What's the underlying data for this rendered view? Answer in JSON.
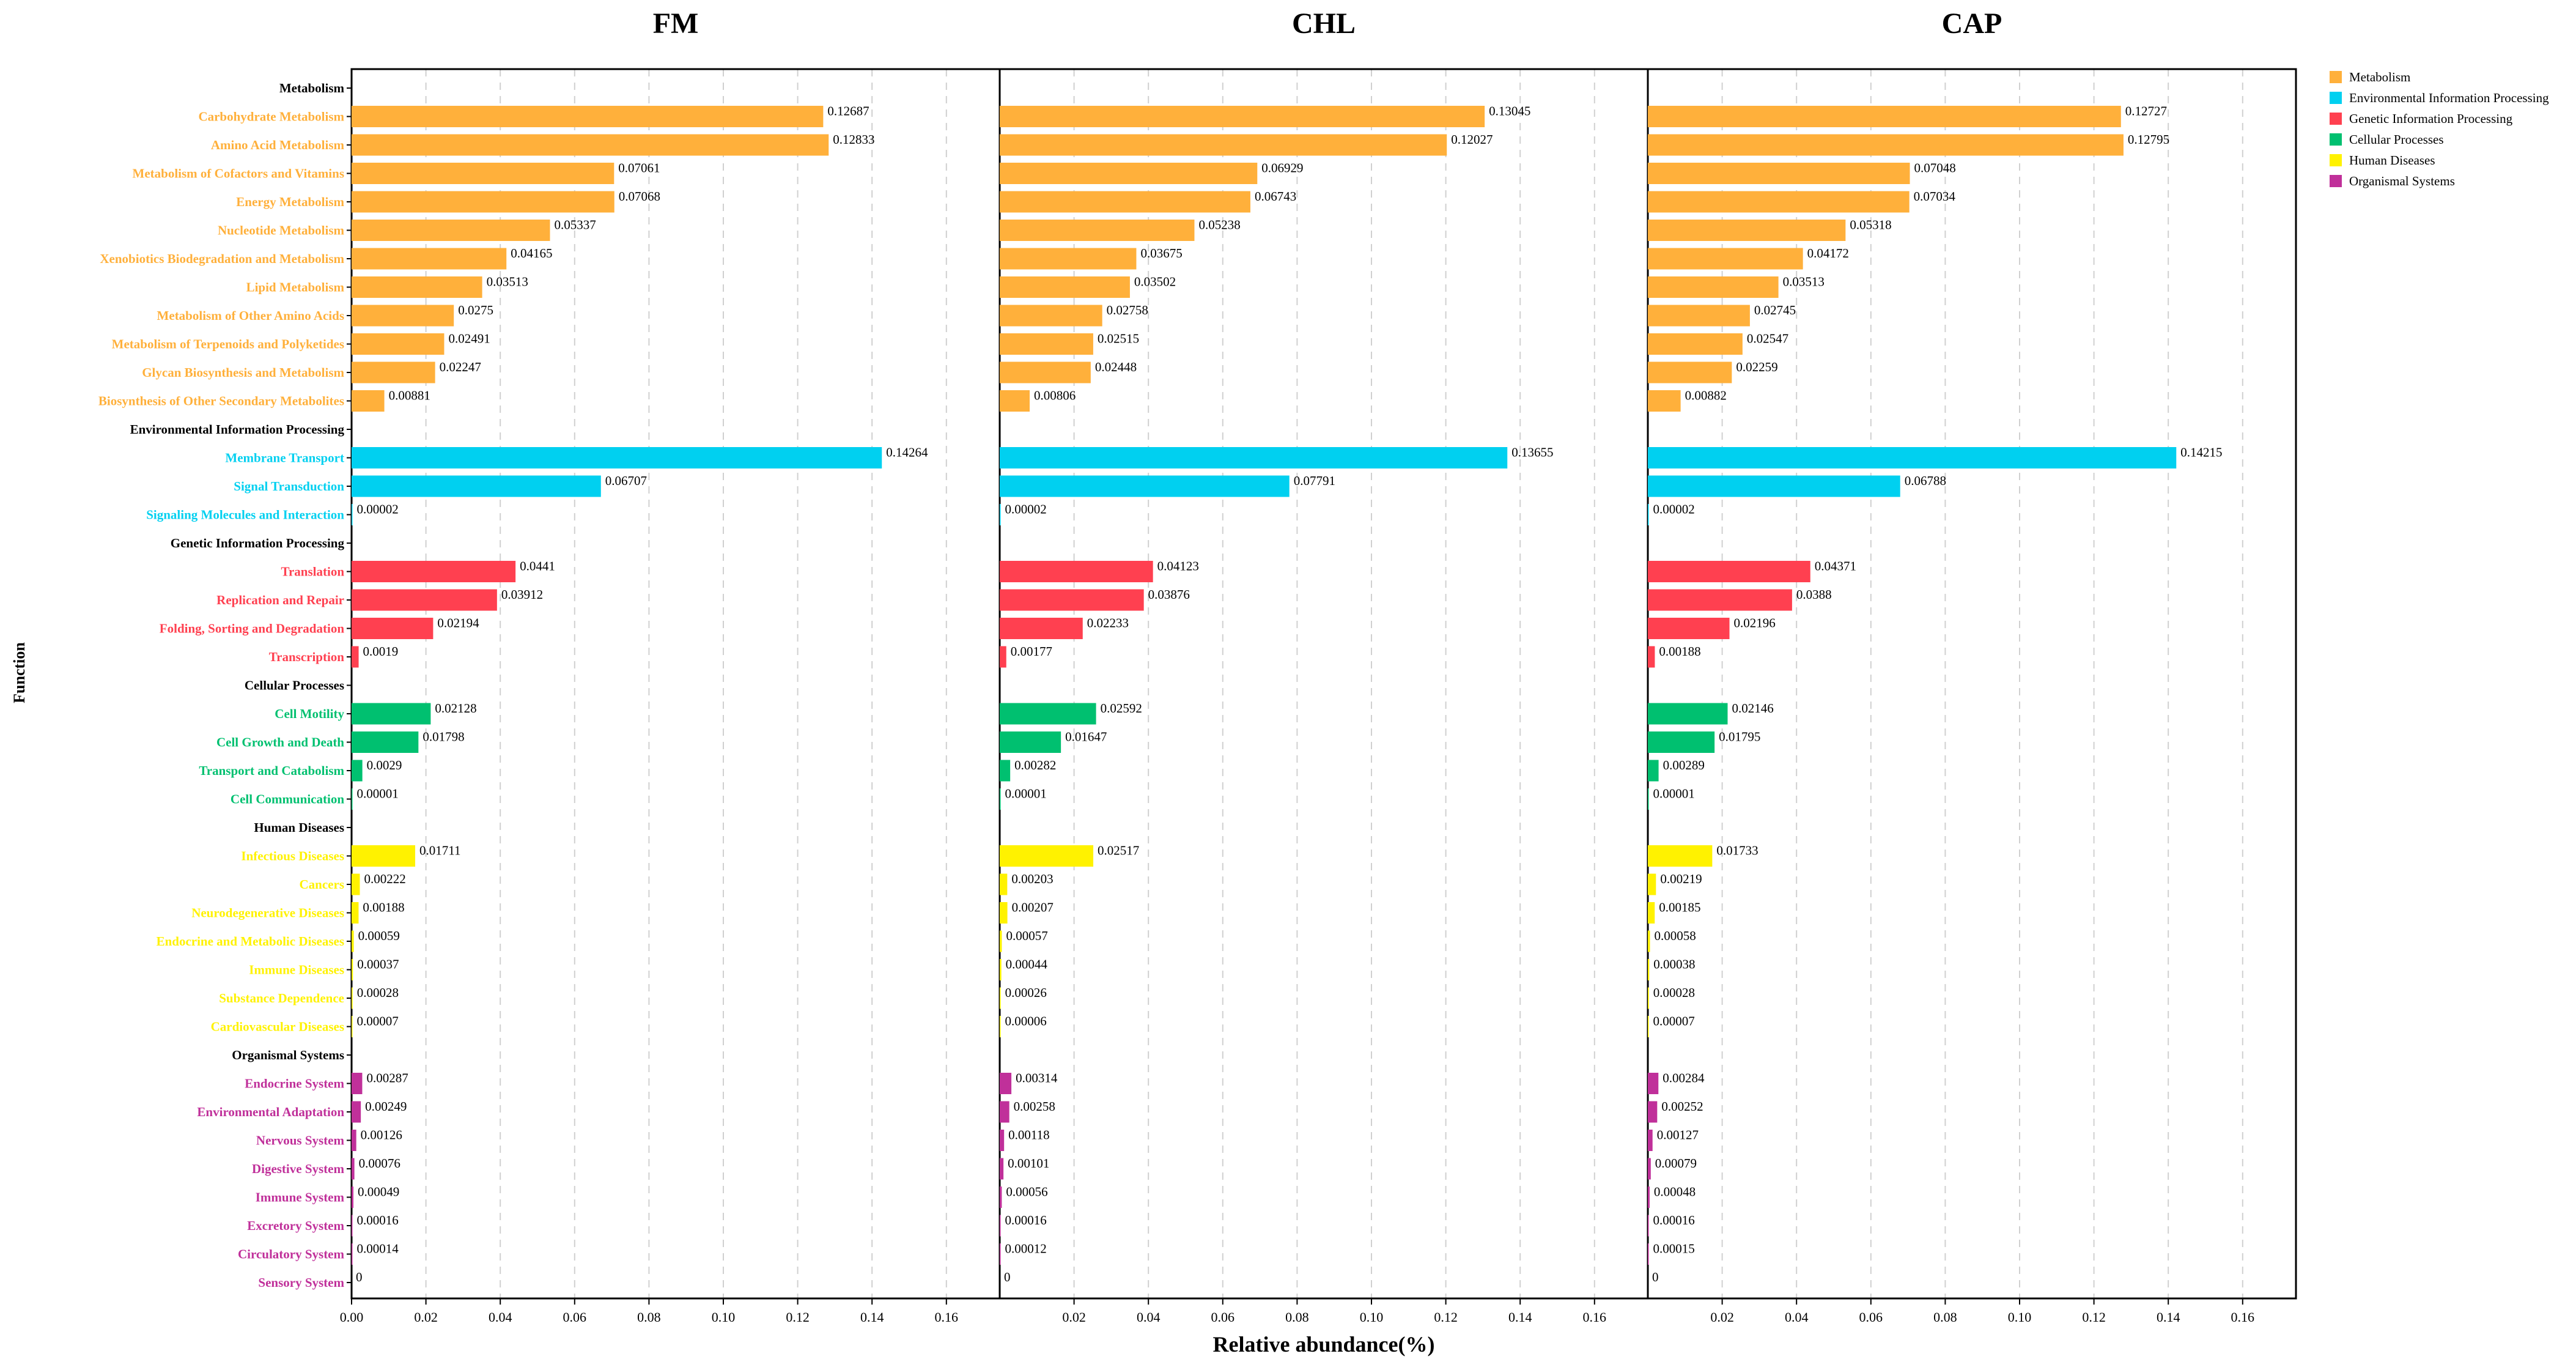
{
  "chart_data": {
    "type": "bar",
    "orientation": "horizontal",
    "xlabel": "Relative abundance(%)",
    "ylabel": "Function",
    "xlim": [
      0,
      0.175
    ],
    "x_ticks_first_panel": [
      "0.00",
      "0.02",
      "0.04",
      "0.06",
      "0.08",
      "0.10",
      "0.12",
      "0.14",
      "0.16"
    ],
    "x_ticks_other_panels": [
      "0.02",
      "0.04",
      "0.06",
      "0.08",
      "0.10",
      "0.12",
      "0.14",
      "0.16"
    ],
    "grid": "vertical dashed",
    "panels": [
      "FM",
      "CHL",
      "CAP"
    ],
    "groups": [
      {
        "name": "Metabolism",
        "color": "#FFB03B"
      },
      {
        "name": "Environmental Information Processing",
        "color": "#00D0F0"
      },
      {
        "name": "Genetic Information Processing",
        "color": "#FF4050"
      },
      {
        "name": "Cellular Processes",
        "color": "#00C070"
      },
      {
        "name": "Human Diseases",
        "color": "#FFF200"
      },
      {
        "name": "Organismal Systems",
        "color": "#C0309A"
      }
    ],
    "rows": [
      {
        "label": "Metabolism",
        "header": true
      },
      {
        "label": "Carbohydrate Metabolism",
        "group": 0,
        "values": [
          0.12687,
          0.13045,
          0.12727
        ],
        "labels": [
          "0.12687",
          "0.13045",
          "0.12727"
        ]
      },
      {
        "label": "Amino Acid Metabolism",
        "group": 0,
        "values": [
          0.12833,
          0.12027,
          0.12795
        ],
        "labels": [
          "0.12833",
          "0.12027",
          "0.12795"
        ]
      },
      {
        "label": "Metabolism of Cofactors and Vitamins",
        "group": 0,
        "values": [
          0.07061,
          0.06929,
          0.07048
        ],
        "labels": [
          "0.07061",
          "0.06929",
          "0.07048"
        ]
      },
      {
        "label": "Energy Metabolism",
        "group": 0,
        "values": [
          0.07068,
          0.06743,
          0.07034
        ],
        "labels": [
          "0.07068",
          "0.06743",
          "0.07034"
        ]
      },
      {
        "label": "Nucleotide Metabolism",
        "group": 0,
        "values": [
          0.05337,
          0.05238,
          0.05318
        ],
        "labels": [
          "0.05337",
          "0.05238",
          "0.05318"
        ]
      },
      {
        "label": "Xenobiotics Biodegradation and Metabolism",
        "group": 0,
        "values": [
          0.04165,
          0.03675,
          0.04172
        ],
        "labels": [
          "0.04165",
          "0.03675",
          "0.04172"
        ]
      },
      {
        "label": "Lipid Metabolism",
        "group": 0,
        "values": [
          0.03513,
          0.03502,
          0.03513
        ],
        "labels": [
          "0.03513",
          "0.03502",
          "0.03513"
        ]
      },
      {
        "label": "Metabolism of Other Amino Acids",
        "group": 0,
        "values": [
          0.0275,
          0.02758,
          0.02745
        ],
        "labels": [
          "0.0275",
          "0.02758",
          "0.02745"
        ]
      },
      {
        "label": "Metabolism of Terpenoids and Polyketides",
        "group": 0,
        "values": [
          0.02491,
          0.02515,
          0.02547
        ],
        "labels": [
          "0.02491",
          "0.02515",
          "0.02547"
        ]
      },
      {
        "label": "Glycan Biosynthesis and Metabolism",
        "group": 0,
        "values": [
          0.02247,
          0.02448,
          0.02259
        ],
        "labels": [
          "0.02247",
          "0.02448",
          "0.02259"
        ]
      },
      {
        "label": "Biosynthesis of Other Secondary Metabolites",
        "group": 0,
        "values": [
          0.00881,
          0.00806,
          0.00882
        ],
        "labels": [
          "0.00881",
          "0.00806",
          "0.00882"
        ]
      },
      {
        "label": "Environmental Information Processing",
        "header": true
      },
      {
        "label": "Membrane Transport",
        "group": 1,
        "values": [
          0.14264,
          0.13655,
          0.14215
        ],
        "labels": [
          "0.14264",
          "0.13655",
          "0.14215"
        ]
      },
      {
        "label": "Signal Transduction",
        "group": 1,
        "values": [
          0.06707,
          0.07791,
          0.06788
        ],
        "labels": [
          "0.06707",
          "0.07791",
          "0.06788"
        ]
      },
      {
        "label": "Signaling Molecules and Interaction",
        "group": 1,
        "values": [
          2e-05,
          2e-05,
          2e-05
        ],
        "labels": [
          "0.00002",
          "0.00002",
          "0.00002"
        ]
      },
      {
        "label": "Genetic Information Processing",
        "header": true
      },
      {
        "label": "Translation",
        "group": 2,
        "values": [
          0.0441,
          0.04123,
          0.04371
        ],
        "labels": [
          "0.0441",
          "0.04123",
          "0.04371"
        ]
      },
      {
        "label": "Replication and Repair",
        "group": 2,
        "values": [
          0.03912,
          0.03876,
          0.0388
        ],
        "labels": [
          "0.03912",
          "0.03876",
          "0.0388"
        ]
      },
      {
        "label": "Folding, Sorting and Degradation",
        "group": 2,
        "values": [
          0.02194,
          0.02233,
          0.02196
        ],
        "labels": [
          "0.02194",
          "0.02233",
          "0.02196"
        ]
      },
      {
        "label": "Transcription",
        "group": 2,
        "values": [
          0.0019,
          0.00177,
          0.00188
        ],
        "labels": [
          "0.0019",
          "0.00177",
          "0.00188"
        ]
      },
      {
        "label": "Cellular Processes",
        "header": true
      },
      {
        "label": "Cell Motility",
        "group": 3,
        "values": [
          0.02128,
          0.02592,
          0.02146
        ],
        "labels": [
          "0.02128",
          "0.02592",
          "0.02146"
        ]
      },
      {
        "label": "Cell Growth and Death",
        "group": 3,
        "values": [
          0.01798,
          0.01647,
          0.01795
        ],
        "labels": [
          "0.01798",
          "0.01647",
          "0.01795"
        ]
      },
      {
        "label": "Transport and Catabolism",
        "group": 3,
        "values": [
          0.0029,
          0.00282,
          0.00289
        ],
        "labels": [
          "0.0029",
          "0.00282",
          "0.00289"
        ]
      },
      {
        "label": "Cell Communication",
        "group": 3,
        "values": [
          1e-05,
          1e-05,
          1e-05
        ],
        "labels": [
          "0.00001",
          "0.00001",
          "0.00001"
        ]
      },
      {
        "label": "Human Diseases",
        "header": true
      },
      {
        "label": "Infectious Diseases",
        "group": 4,
        "values": [
          0.01711,
          0.02517,
          0.01733
        ],
        "labels": [
          "0.01711",
          "0.02517",
          "0.01733"
        ]
      },
      {
        "label": "Cancers",
        "group": 4,
        "values": [
          0.00222,
          0.00203,
          0.00219
        ],
        "labels": [
          "0.00222",
          "0.00203",
          "0.00219"
        ]
      },
      {
        "label": "Neurodegenerative Diseases",
        "group": 4,
        "values": [
          0.00188,
          0.00207,
          0.00185
        ],
        "labels": [
          "0.00188",
          "0.00207",
          "0.00185"
        ]
      },
      {
        "label": "Endocrine and Metabolic Diseases",
        "group": 4,
        "values": [
          0.00059,
          0.00057,
          0.00058
        ],
        "labels": [
          "0.00059",
          "0.00057",
          "0.00058"
        ]
      },
      {
        "label": "Immune Diseases",
        "group": 4,
        "values": [
          0.00037,
          0.00044,
          0.00038
        ],
        "labels": [
          "0.00037",
          "0.00044",
          "0.00038"
        ]
      },
      {
        "label": "Substance Dependence",
        "group": 4,
        "values": [
          0.00028,
          0.00026,
          0.00028
        ],
        "labels": [
          "0.00028",
          "0.00026",
          "0.00028"
        ]
      },
      {
        "label": "Cardiovascular Diseases",
        "group": 4,
        "values": [
          7e-05,
          6e-05,
          7e-05
        ],
        "labels": [
          "0.00007",
          "0.00006",
          "0.00007"
        ]
      },
      {
        "label": "Organismal Systems",
        "header": true
      },
      {
        "label": "Endocrine System",
        "group": 5,
        "values": [
          0.00287,
          0.00314,
          0.00284
        ],
        "labels": [
          "0.00287",
          "0.00314",
          "0.00284"
        ]
      },
      {
        "label": "Environmental Adaptation",
        "group": 5,
        "values": [
          0.00249,
          0.00258,
          0.00252
        ],
        "labels": [
          "0.00249",
          "0.00258",
          "0.00252"
        ]
      },
      {
        "label": "Nervous System",
        "group": 5,
        "values": [
          0.00126,
          0.00118,
          0.00127
        ],
        "labels": [
          "0.00126",
          "0.00118",
          "0.00127"
        ]
      },
      {
        "label": "Digestive System",
        "group": 5,
        "values": [
          0.00076,
          0.00101,
          0.00079
        ],
        "labels": [
          "0.00076",
          "0.00101",
          "0.00079"
        ]
      },
      {
        "label": "Immune System",
        "group": 5,
        "values": [
          0.00049,
          0.00056,
          0.00048
        ],
        "labels": [
          "0.00049",
          "0.00056",
          "0.00048"
        ]
      },
      {
        "label": "Excretory System",
        "group": 5,
        "values": [
          0.00016,
          0.00016,
          0.00016
        ],
        "labels": [
          "0.00016",
          "0.00016",
          "0.00016"
        ]
      },
      {
        "label": "Circulatory System",
        "group": 5,
        "values": [
          0.00014,
          0.00012,
          0.00015
        ],
        "labels": [
          "0.00014",
          "0.00012",
          "0.00015"
        ]
      },
      {
        "label": "Sensory System",
        "group": 5,
        "values": [
          0,
          0,
          0
        ],
        "labels": [
          "0",
          "0",
          "0"
        ]
      }
    ]
  }
}
